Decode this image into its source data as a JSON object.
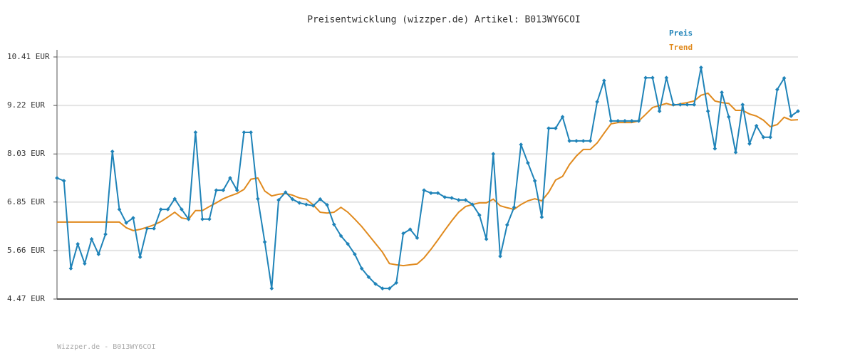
{
  "chart_data": {
    "type": "line",
    "title": "Preisentwicklung (wizzper.de) Artikel: B013WY6COI",
    "footer": "Wizzper.de - B013WY6COI",
    "ylim": [
      4.47,
      10.41
    ],
    "yticks": [
      {
        "value": 4.47,
        "label": "4.47 EUR"
      },
      {
        "value": 5.66,
        "label": "5.66 EUR"
      },
      {
        "value": 6.85,
        "label": "6.85 EUR"
      },
      {
        "value": 8.03,
        "label": "8.03 EUR"
      },
      {
        "value": 9.22,
        "label": "9.22 EUR"
      },
      {
        "value": 10.41,
        "label": "10.41 EUR"
      }
    ],
    "grid": true,
    "series": [
      {
        "name": "Preis",
        "color": "#1f83b8",
        "markers": true,
        "values": [
          7.44,
          7.37,
          5.22,
          5.82,
          5.34,
          5.94,
          5.57,
          6.06,
          8.09,
          6.67,
          6.34,
          6.46,
          5.5,
          6.2,
          6.2,
          6.67,
          6.67,
          6.93,
          6.67,
          6.43,
          8.56,
          6.43,
          6.43,
          7.14,
          7.14,
          7.44,
          7.14,
          8.56,
          8.56,
          6.93,
          5.87,
          4.73,
          6.9,
          7.09,
          6.92,
          6.83,
          6.79,
          6.76,
          6.92,
          6.78,
          6.3,
          6.02,
          5.82,
          5.57,
          5.22,
          5.01,
          4.84,
          4.73,
          4.73,
          4.87,
          6.08,
          6.18,
          5.97,
          7.14,
          7.07,
          7.07,
          6.97,
          6.95,
          6.9,
          6.9,
          6.79,
          6.53,
          5.94,
          8.03,
          5.52,
          6.29,
          6.72,
          8.26,
          7.81,
          7.37,
          6.48,
          8.66,
          8.66,
          8.94,
          8.35,
          8.35,
          8.35,
          8.35,
          9.31,
          9.83,
          8.84,
          8.84,
          8.84,
          8.84,
          8.84,
          9.9,
          9.9,
          9.08,
          9.9,
          9.24,
          9.24,
          9.24,
          9.24,
          10.15,
          9.08,
          8.16,
          9.54,
          8.94,
          8.07,
          9.24,
          8.28,
          8.72,
          8.44,
          8.44,
          9.61,
          9.89,
          8.96,
          9.08
        ]
      },
      {
        "name": "Trend",
        "color": "#e08a1e",
        "markers": false,
        "values": [
          6.36,
          6.36,
          6.36,
          6.36,
          6.36,
          6.36,
          6.36,
          6.36,
          6.36,
          6.36,
          6.22,
          6.15,
          6.18,
          6.23,
          6.29,
          6.37,
          6.48,
          6.6,
          6.46,
          6.43,
          6.64,
          6.64,
          6.74,
          6.83,
          6.93,
          7.0,
          7.06,
          7.16,
          7.41,
          7.44,
          7.12,
          7.0,
          7.04,
          7.06,
          7.02,
          6.95,
          6.92,
          6.78,
          6.6,
          6.58,
          6.6,
          6.72,
          6.6,
          6.43,
          6.25,
          6.04,
          5.83,
          5.62,
          5.34,
          5.31,
          5.29,
          5.31,
          5.33,
          5.48,
          5.69,
          5.92,
          6.16,
          6.39,
          6.6,
          6.74,
          6.79,
          6.83,
          6.83,
          6.92,
          6.76,
          6.71,
          6.67,
          6.79,
          6.88,
          6.93,
          6.88,
          7.09,
          7.39,
          7.48,
          7.77,
          7.98,
          8.14,
          8.14,
          8.3,
          8.54,
          8.77,
          8.8,
          8.8,
          8.8,
          8.84,
          9.0,
          9.17,
          9.22,
          9.27,
          9.22,
          9.26,
          9.29,
          9.33,
          9.47,
          9.52,
          9.33,
          9.29,
          9.27,
          9.1,
          9.1,
          9.01,
          8.96,
          8.86,
          8.7,
          8.75,
          8.93,
          8.86,
          8.87
        ]
      }
    ]
  }
}
